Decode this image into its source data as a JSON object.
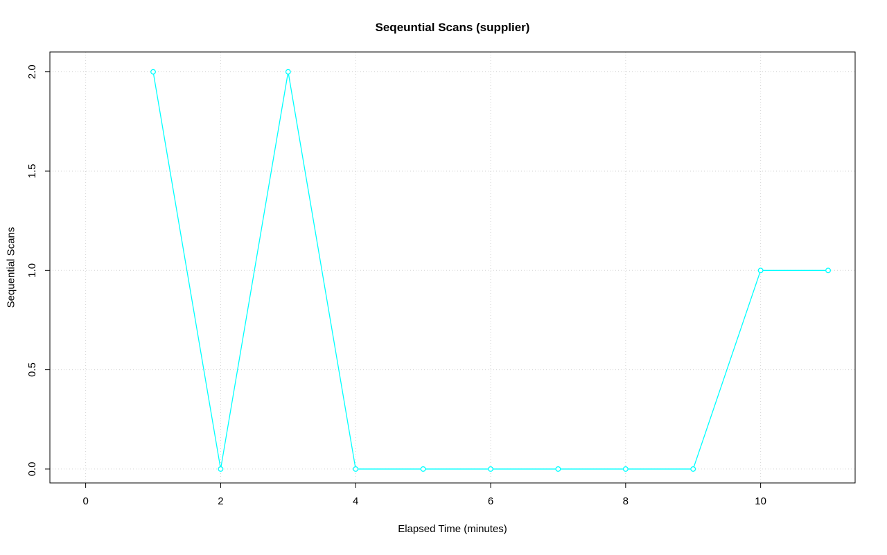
{
  "chart_data": {
    "type": "line",
    "title": "Seqeuntial Scans (supplier)",
    "xlabel": "Elapsed Time (minutes)",
    "ylabel": "Sequential Scans",
    "x": [
      1,
      2,
      3,
      4,
      5,
      6,
      7,
      8,
      9,
      10,
      11
    ],
    "y": [
      2,
      0,
      2,
      0,
      0,
      0,
      0,
      0,
      0,
      1,
      1
    ],
    "xticks": [
      0,
      2,
      4,
      6,
      8,
      10
    ],
    "yticks": [
      0.0,
      0.5,
      1.0,
      1.5,
      2.0
    ],
    "xlim": [
      -0.53,
      11.4
    ],
    "ylim": [
      -0.07,
      2.1
    ],
    "grid": true,
    "legend": "none",
    "line_color": "#00FFFF",
    "grid_color": "#D3D3D3",
    "box_color": "#000000",
    "marker": "open-circle"
  }
}
